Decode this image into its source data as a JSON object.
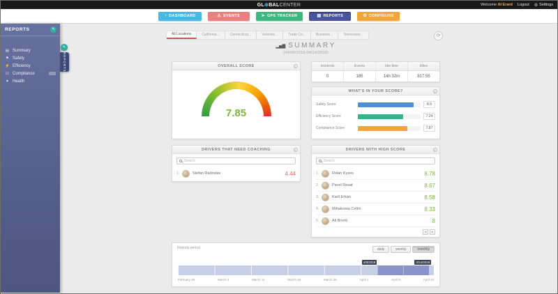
{
  "topbar": {
    "brand_left": "GL",
    "globe_glyph": "⊕",
    "brand_mid": "BAL",
    "brand_right": "CENTER",
    "welcome_prefix": "Welcome",
    "username": "Al Erard",
    "logout_label": "Logout",
    "settings_glyph": "⚙",
    "settings_label": "Settings"
  },
  "nav": {
    "items": [
      {
        "label": "DASHBOARD",
        "glyph": "◔",
        "color": "#47b7e3"
      },
      {
        "label": "EVENTS",
        "glyph": "⚠",
        "color": "#e88080"
      },
      {
        "label": "GPS TRACKER",
        "glyph": "➤",
        "color": "#3db87e"
      },
      {
        "label": "REPORTS",
        "glyph": "▤",
        "color": "#4a549e"
      },
      {
        "label": "CONFIGURE",
        "glyph": "⚙",
        "color": "#f0a63c"
      }
    ]
  },
  "sidebar": {
    "title": "REPORTS",
    "badge_glyph": "✎",
    "flyout_label": "REPORTS",
    "items": [
      {
        "label": "Summary",
        "glyph": "▤"
      },
      {
        "label": "Safety",
        "glyph": "⚑"
      },
      {
        "label": "Efficiency",
        "glyph": "⚡"
      },
      {
        "label": "Compliance",
        "glyph": "☑"
      },
      {
        "label": "Health",
        "glyph": "♥"
      }
    ]
  },
  "tabs": [
    {
      "label": "All Locations"
    },
    {
      "label": "California..."
    },
    {
      "label": "Connecticut..."
    },
    {
      "label": "Vehicles..."
    },
    {
      "label": "Trade Co..."
    },
    {
      "label": "Business..."
    },
    {
      "label": "Tennessee..."
    }
  ],
  "page": {
    "title_glyph": "▂▅▇",
    "title": "SUMMARY",
    "date_range": "(04/08/2018-04/14/2018)",
    "refresh_glyph": "⟳"
  },
  "icons": {
    "info": "i",
    "pager_prev": "◄",
    "pager_next": "►"
  },
  "overall_score": {
    "title": "OVERALL SCORE",
    "value": "7.85"
  },
  "stats": {
    "columns": [
      {
        "label": "Incidents",
        "value": "0"
      },
      {
        "label": "Events",
        "value": "185"
      },
      {
        "label": "Idle time",
        "value": "14h 32m"
      },
      {
        "label": "Miles",
        "value": "817.55"
      }
    ]
  },
  "score_breakdown": {
    "title": "WHAT'S IN YOUR SCORE?",
    "rows": [
      {
        "label": "Safety Score",
        "value": "8.9",
        "pct": 89,
        "color": "#4a90d2"
      },
      {
        "label": "Efficiency Score",
        "value": "7.24",
        "pct": 72,
        "color": "#2eb88a"
      },
      {
        "label": "Compliance Score",
        "value": "7.87",
        "pct": 79,
        "color": "#f2a33c"
      }
    ]
  },
  "coaching": {
    "title": "DRIVERS THAT NEED COACHING",
    "search_placeholder": "Search",
    "drivers": [
      {
        "index": "1.",
        "name": "Stefan Radoslav",
        "score": "4.44"
      }
    ]
  },
  "high_score": {
    "title": "DRIVERS WITH HIGH SCORE",
    "search_placeholder": "Search",
    "drivers": [
      {
        "index": "1.",
        "name": "Rolan Kyzes",
        "score": "8.78"
      },
      {
        "index": "2.",
        "name": "Pavel Resat",
        "score": "8.67"
      },
      {
        "index": "3.",
        "name": "Karli Erkan",
        "score": "8.58"
      },
      {
        "index": "4.",
        "name": "Mihaleswa Celim",
        "score": "8.33"
      },
      {
        "index": "5.",
        "name": "Ali Bronti",
        "score": "8"
      }
    ]
  },
  "reports_period": {
    "label": "Reports period",
    "buttons": [
      {
        "label": "daily"
      },
      {
        "label": "weekly"
      },
      {
        "label": "monthly"
      }
    ],
    "range_start": "4/8/2018",
    "range_end": "4/14/2018",
    "ticks": [
      "February 25",
      "March 4",
      "March 11",
      "March 18",
      "March 25",
      "April 1",
      "April 8",
      "April 15"
    ]
  },
  "colors": {
    "score-positive": "#7cb53e",
    "score-negative": "#e46a6a",
    "timeline-track": "#c7cee6",
    "timeline-selected": "#8893c9",
    "active-tab-underline": "#cf5151"
  }
}
